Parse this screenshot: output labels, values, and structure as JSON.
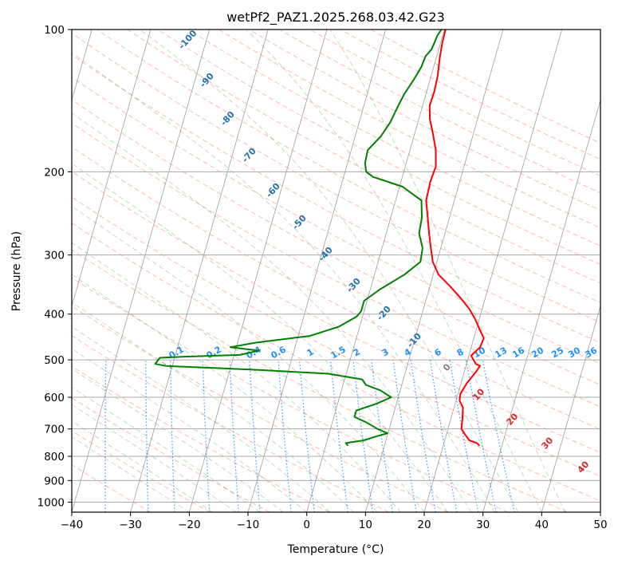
{
  "chart_data": {
    "type": "line",
    "title": "wetPf2_PAZ1.2025.268.03.42.G23",
    "xlabel": "Temperature (°C)",
    "ylabel": "Pressure (hPa)",
    "xlim": [
      -40,
      50
    ],
    "ylim": [
      1050,
      100
    ],
    "y_scale": "log",
    "grid": true,
    "x_ticks": [
      -40,
      -30,
      -20,
      -10,
      0,
      10,
      20,
      30,
      40,
      50
    ],
    "y_ticks": [
      100,
      200,
      300,
      400,
      500,
      600,
      700,
      800,
      900,
      1000
    ],
    "series": [
      {
        "color": "#ff0000",
        "points": [
          [
            26.2,
            760
          ],
          [
            25.6,
            750
          ],
          [
            24.2,
            740
          ],
          [
            23.2,
            720
          ],
          [
            22.3,
            700
          ],
          [
            21.9,
            660
          ],
          [
            21.5,
            630
          ],
          [
            20.6,
            610
          ],
          [
            20.4,
            590
          ],
          [
            21.0,
            560
          ],
          [
            22.0,
            530
          ],
          [
            22.4,
            515
          ],
          [
            21.6,
            510
          ],
          [
            21.0,
            500
          ],
          [
            20.4,
            490
          ],
          [
            21.5,
            470
          ],
          [
            21.7,
            450
          ],
          [
            20.5,
            430
          ],
          [
            19.3,
            410
          ],
          [
            17.8,
            390
          ],
          [
            15.8,
            370
          ],
          [
            13.5,
            350
          ],
          [
            10.9,
            330
          ],
          [
            9.3,
            310
          ],
          [
            8.3,
            290
          ],
          [
            7.3,
            270
          ],
          [
            6.3,
            250
          ],
          [
            5.2,
            230
          ],
          [
            5.0,
            210
          ],
          [
            5.2,
            195
          ],
          [
            4.4,
            180
          ],
          [
            3.0,
            165
          ],
          [
            1.9,
            155
          ],
          [
            1.2,
            145
          ],
          [
            1.3,
            135
          ],
          [
            1.1,
            125
          ],
          [
            0.6,
            115
          ],
          [
            0.3,
            107
          ],
          [
            0.2,
            100
          ]
        ]
      },
      {
        "color": "#008000",
        "points": [
          [
            3.8,
            760
          ],
          [
            3.3,
            750
          ],
          [
            6.2,
            740
          ],
          [
            8.3,
            725
          ],
          [
            9.9,
            715
          ],
          [
            8.0,
            700
          ],
          [
            6.0,
            680
          ],
          [
            3.5,
            660
          ],
          [
            3.5,
            640
          ],
          [
            6.5,
            620
          ],
          [
            8.8,
            600
          ],
          [
            6.6,
            580
          ],
          [
            3.9,
            565
          ],
          [
            3.0,
            550
          ],
          [
            -3.0,
            535
          ],
          [
            -15.0,
            525
          ],
          [
            -31.0,
            515
          ],
          [
            -33.0,
            510
          ],
          [
            -32.5,
            495
          ],
          [
            -28.0,
            492
          ],
          [
            -19.0,
            488
          ],
          [
            -16.0,
            478
          ],
          [
            -21.0,
            470
          ],
          [
            -17.0,
            460
          ],
          [
            -8.0,
            445
          ],
          [
            -3.5,
            425
          ],
          [
            -1.0,
            405
          ],
          [
            -0.5,
            395
          ],
          [
            -0.5,
            375
          ],
          [
            1.6,
            355
          ],
          [
            5.1,
            330
          ],
          [
            7.2,
            310
          ],
          [
            6.9,
            290
          ],
          [
            5.6,
            270
          ],
          [
            5.3,
            250
          ],
          [
            4.4,
            230
          ],
          [
            0.5,
            215
          ],
          [
            -5.0,
            205
          ],
          [
            -6.4,
            200
          ],
          [
            -7.0,
            192
          ],
          [
            -7.2,
            180
          ],
          [
            -5.6,
            168
          ],
          [
            -4.7,
            157
          ],
          [
            -4.2,
            146
          ],
          [
            -3.7,
            137
          ],
          [
            -2.8,
            128
          ],
          [
            -2.1,
            120
          ],
          [
            -1.9,
            114
          ],
          [
            -1.2,
            110
          ],
          [
            -0.9,
            103
          ],
          [
            -0.5,
            100
          ]
        ]
      }
    ],
    "background_line_labels": {
      "dry_adiabats_c": [
        -100,
        -90,
        -80,
        -70,
        -60,
        -50,
        -40,
        -30,
        -20,
        -10,
        0,
        10,
        20,
        30,
        40
      ],
      "mixing_ratios_gkg": [
        "0.1",
        "0.2",
        "0.4",
        "0.6",
        "1",
        "1.5",
        "2",
        "3",
        "4",
        "6",
        "8",
        "10",
        "13",
        "16",
        "20",
        "25",
        "30",
        "36"
      ]
    },
    "colors": {
      "temperature": "#ff0000",
      "dewpoint": "#008000",
      "dry_adiabat": "#ff6347",
      "moist_adiabat": "#228b22",
      "mixing_ratio": "#1e90ff",
      "isotherm": "#888888",
      "isobar": "#aaaaaa",
      "dry_adiabat_label": "#2171b5",
      "dry_adiabat_label_warm": "#d62728",
      "zero_label": "#808080",
      "mixing_label": "#1e90ff"
    }
  }
}
